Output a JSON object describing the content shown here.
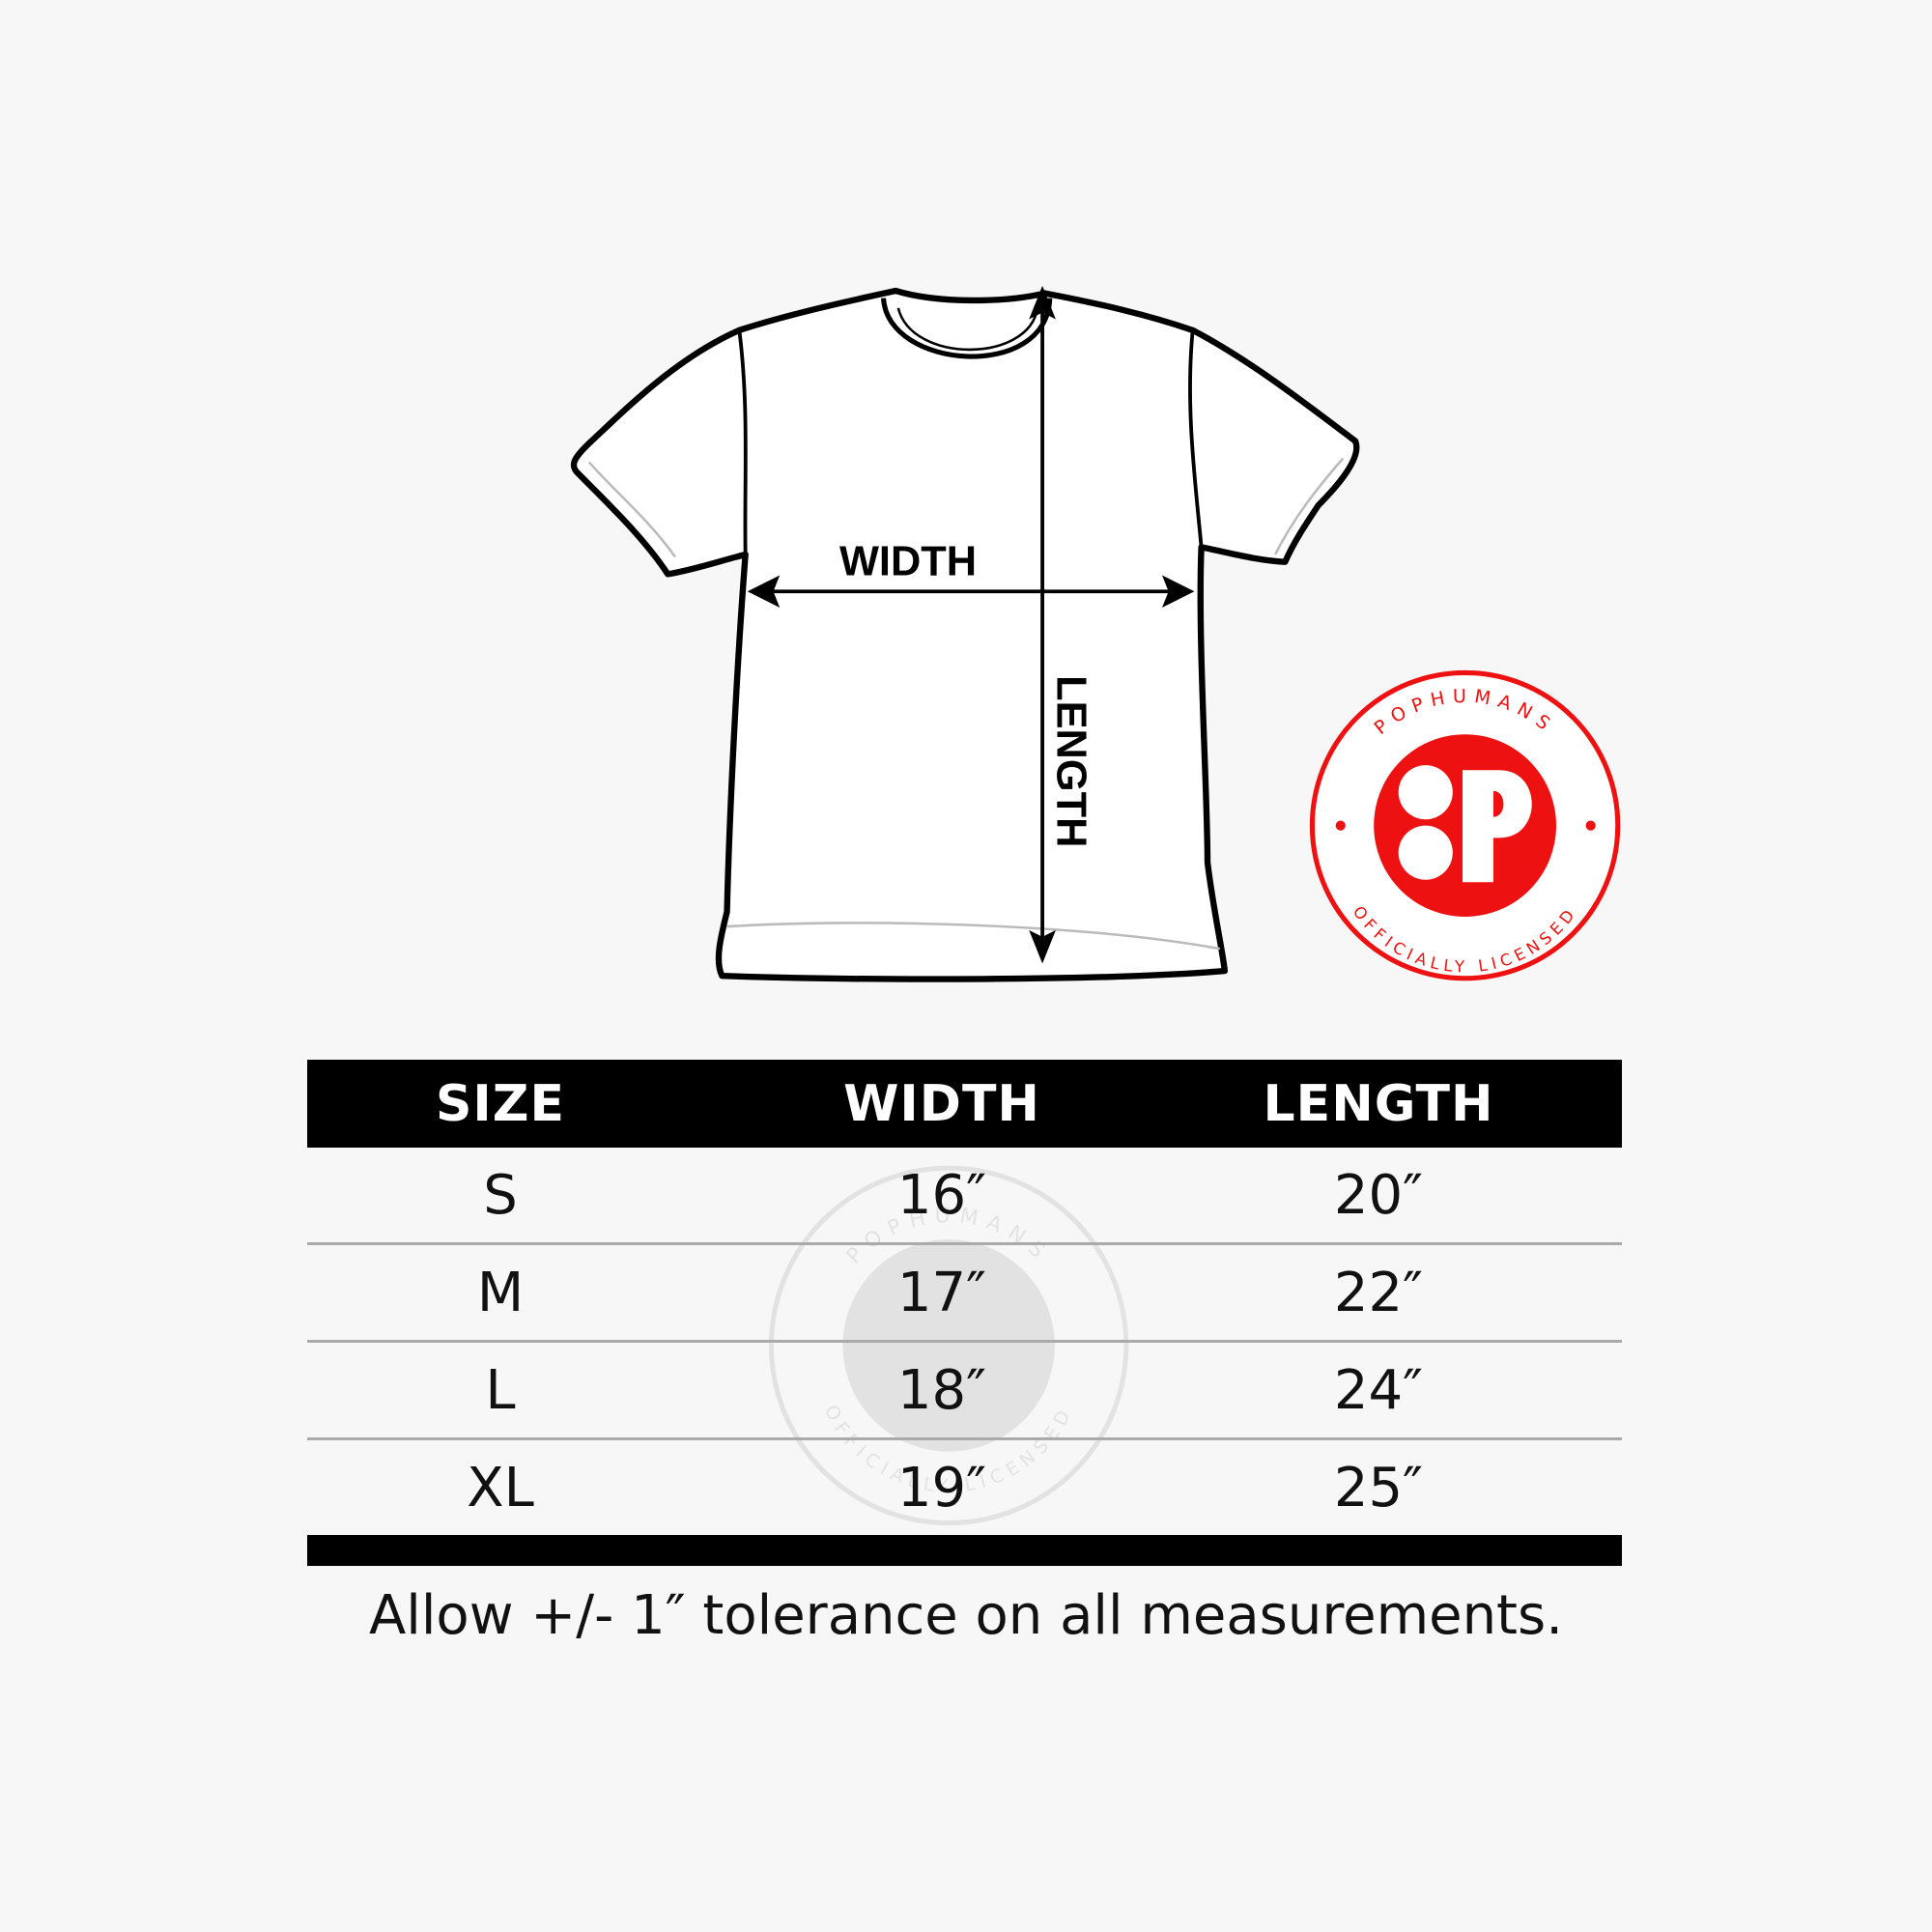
{
  "diagram": {
    "width_label": "WIDTH",
    "length_label": "LENGTH"
  },
  "logo": {
    "brand": "POPHUMANS",
    "tagline": "OFFICIALLY LICENSED",
    "color": "#ee1111"
  },
  "table": {
    "headers": [
      "SIZE",
      "WIDTH",
      "LENGTH"
    ],
    "rows": [
      [
        "S",
        "16″",
        "20″"
      ],
      [
        "M",
        "17″",
        "22″"
      ],
      [
        "L",
        "18″",
        "24″"
      ],
      [
        "XL",
        "19″",
        "25″"
      ]
    ]
  },
  "note": "Allow +/- 1″ tolerance on all measurements."
}
